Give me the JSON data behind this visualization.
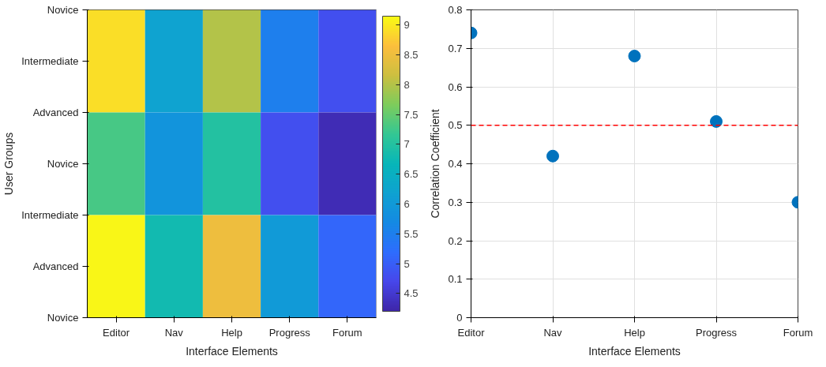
{
  "chart_data": [
    {
      "type": "heatmap",
      "xlabel": "Interface Elements",
      "ylabel": "User Groups",
      "categories": [
        "Editor",
        "Nav",
        "Help",
        "Progress",
        "Forum"
      ],
      "cells": [
        [
          8.9,
          6.2,
          8.0,
          5.5,
          4.8
        ],
        [
          7.3,
          5.9,
          7.0,
          4.8,
          4.3
        ],
        [
          9.1,
          6.8,
          8.5,
          6.0,
          5.1
        ]
      ],
      "y_categories": [
        null,
        null,
        null
      ],
      "annotations": [
        "Novice",
        "Intermediate",
        "Advanced",
        "Novice",
        "Intermediate",
        "Advanced",
        "Novice"
      ],
      "clim": [
        4.2,
        9.15
      ],
      "cticks": [
        4.5,
        5,
        5.5,
        6,
        6.5,
        7,
        7.5,
        8,
        8.5,
        9
      ]
    },
    {
      "type": "scatter",
      "xlabel": "Interface Elements",
      "ylabel": "Correlation Coefficient",
      "categories": [
        "Editor",
        "Nav",
        "Help",
        "Progress",
        "Forum"
      ],
      "series": [
        {
          "color": "#0072bd",
          "values": [
            0.74,
            0.42,
            0.68,
            0.51,
            0.3
          ]
        }
      ],
      "ylim": [
        0,
        0.8
      ],
      "yticks": [
        0,
        0.1,
        0.2,
        0.3,
        0.4,
        0.5,
        0.6,
        0.7,
        0.8
      ],
      "grid": true,
      "marker": "circle",
      "ref_lines": [
        {
          "axis": "y",
          "value": 0.5,
          "color": "#ff0000",
          "line_style": "dashed"
        }
      ]
    }
  ]
}
